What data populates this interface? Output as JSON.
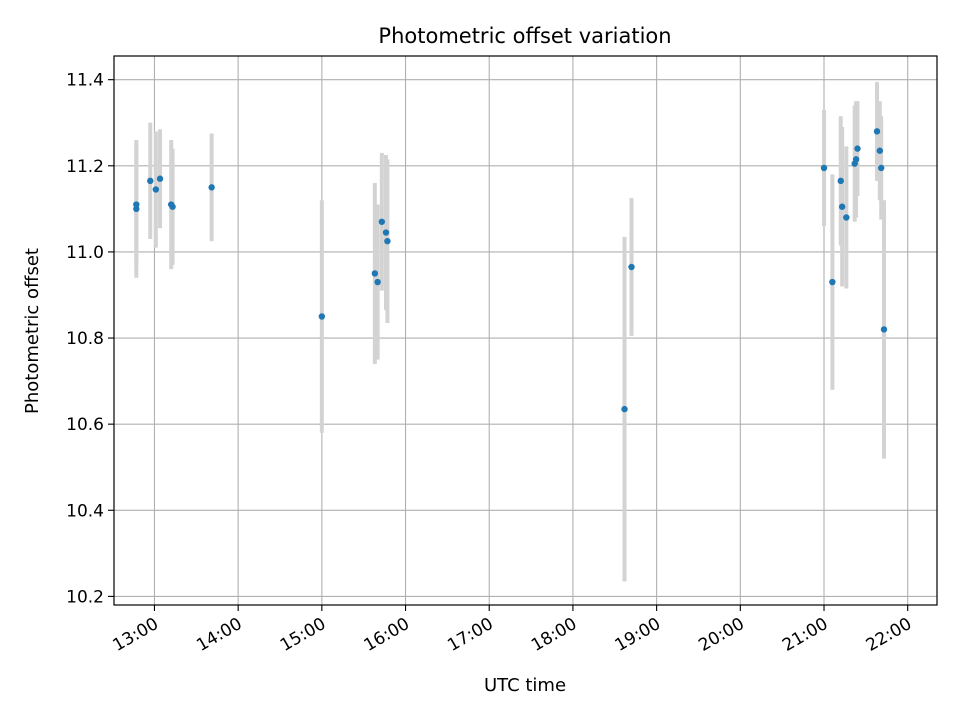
{
  "chart_data": {
    "type": "scatter",
    "title": "Photometric offset variation",
    "xlabel": "UTC time",
    "ylabel": "Photometric offset",
    "x_unit": "UTC time (HH:MM)",
    "xlim": [
      "12:31",
      "22:21"
    ],
    "ylim": [
      10.18,
      11.455
    ],
    "x_ticks": [
      "13:00",
      "14:00",
      "15:00",
      "16:00",
      "17:00",
      "18:00",
      "19:00",
      "20:00",
      "21:00",
      "22:00"
    ],
    "y_ticks": [
      "10.2",
      "10.4",
      "10.6",
      "10.8",
      "11.0",
      "11.2",
      "11.4"
    ],
    "grid": true,
    "colors": {
      "points": "#1f77b4",
      "error_bars": "#d3d3d3",
      "grid": "#b0b0b0",
      "axes": "#000000"
    },
    "series": [
      {
        "points": [
          {
            "x": "12:47",
            "y": 11.1,
            "err": 0.16
          },
          {
            "x": "12:47",
            "y": 11.11,
            "err": 0.14
          },
          {
            "x": "12:57",
            "y": 11.165,
            "err": 0.135
          },
          {
            "x": "13:01",
            "y": 11.145,
            "err": 0.135
          },
          {
            "x": "13:04",
            "y": 11.17,
            "err": 0.115
          },
          {
            "x": "13:12",
            "y": 11.11,
            "err": 0.15
          },
          {
            "x": "13:13",
            "y": 11.105,
            "err": 0.135
          },
          {
            "x": "13:41",
            "y": 11.15,
            "err": 0.125
          },
          {
            "x": "15:00",
            "y": 10.85,
            "err": 0.27
          },
          {
            "x": "15:38",
            "y": 10.95,
            "err": 0.21
          },
          {
            "x": "15:40",
            "y": 10.93,
            "err": 0.18
          },
          {
            "x": "15:43",
            "y": 11.07,
            "err": 0.16
          },
          {
            "x": "15:46",
            "y": 11.045,
            "err": 0.18
          },
          {
            "x": "15:47",
            "y": 11.025,
            "err": 0.19
          },
          {
            "x": "18:37",
            "y": 10.635,
            "err": 0.4
          },
          {
            "x": "18:42",
            "y": 10.965,
            "err": 0.16
          },
          {
            "x": "21:00",
            "y": 11.195,
            "err": 0.135
          },
          {
            "x": "21:06",
            "y": 10.93,
            "err": 0.25
          },
          {
            "x": "21:12",
            "y": 11.165,
            "err": 0.15
          },
          {
            "x": "21:13",
            "y": 11.105,
            "err": 0.185
          },
          {
            "x": "21:16",
            "y": 11.08,
            "err": 0.165
          },
          {
            "x": "21:22",
            "y": 11.205,
            "err": 0.135
          },
          {
            "x": "21:23",
            "y": 11.215,
            "err": 0.135
          },
          {
            "x": "21:24",
            "y": 11.24,
            "err": 0.11
          },
          {
            "x": "21:38",
            "y": 11.28,
            "err": 0.115
          },
          {
            "x": "21:40",
            "y": 11.235,
            "err": 0.115
          },
          {
            "x": "21:41",
            "y": 11.195,
            "err": 0.12
          },
          {
            "x": "21:43",
            "y": 10.82,
            "err": 0.3
          }
        ]
      }
    ]
  }
}
